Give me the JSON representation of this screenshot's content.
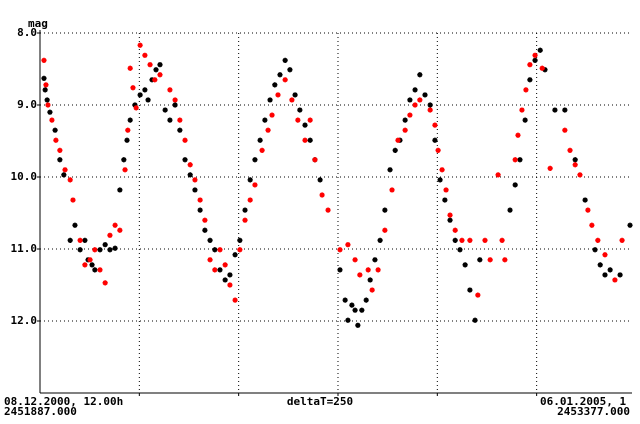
{
  "chart_data": {
    "type": "scatter",
    "y_label": "mag",
    "x_start_label": "08.12.2000, 12.00h",
    "x_start_jd": "2451887.000",
    "x_step_label": "deltaT=250",
    "x_end_label": "06.01.2005, 1",
    "x_end_jd": "2453377.000",
    "xlim": [
      2451887,
      2453377
    ],
    "xticks": [
      2452137,
      2452387,
      2452637,
      2452887,
      2453137
    ],
    "ylim": [
      13,
      8
    ],
    "yticks": [
      {
        "value": 8,
        "label": "8.0"
      },
      {
        "value": 9,
        "label": "9.0"
      },
      {
        "value": 10,
        "label": "10.0"
      },
      {
        "value": 11,
        "label": "11.0"
      },
      {
        "value": 12,
        "label": "12.0"
      }
    ],
    "grid": true,
    "series": [
      {
        "color": "#000000",
        "x": [
          2451897,
          2451900,
          2451905,
          2451912,
          2451925,
          2451937,
          2451947,
          2451963,
          2451975,
          2451988,
          2452000,
          2452008,
          2452018,
          2452025,
          2452038,
          2452051,
          2452063,
          2452076,
          2452088,
          2452098,
          2452106,
          2452114,
          2452126,
          2452139,
          2452151,
          2452159,
          2452169,
          2452179,
          2452189,
          2452202,
          2452214,
          2452227,
          2452239,
          2452252,
          2452265,
          2452277,
          2452290,
          2452302,
          2452315,
          2452327,
          2452340,
          2452353,
          2452365,
          2452378,
          2452390,
          2452403,
          2452416,
          2452428,
          2452441,
          2452453,
          2452466,
          2452478,
          2452491,
          2452504,
          2452516,
          2452529,
          2452541,
          2452554,
          2452567,
          2452579,
          2452592,
          2452642,
          2452655,
          2452662,
          2452672,
          2452680,
          2452687,
          2452697,
          2452708,
          2452718,
          2452730,
          2452743,
          2452755,
          2452768,
          2452781,
          2452793,
          2452806,
          2452818,
          2452831,
          2452843,
          2452856,
          2452869,
          2452881,
          2452894,
          2452906,
          2452919,
          2452932,
          2452944,
          2452957,
          2452969,
          2452982,
          2452994,
          2453070,
          2453083,
          2453095,
          2453108,
          2453120,
          2453133,
          2453146,
          2453158,
          2453183,
          2453208,
          2453234,
          2453259,
          2453284,
          2453297,
          2453309,
          2453322,
          2453347,
          2453372
        ],
        "values": [
          8.63,
          8.79,
          8.93,
          9.1,
          9.35,
          9.76,
          9.97,
          10.88,
          10.67,
          11.01,
          10.88,
          11.15,
          11.22,
          11.29,
          11.01,
          10.94,
          11.01,
          10.99,
          10.18,
          9.76,
          9.49,
          9.21,
          9.0,
          8.86,
          8.79,
          8.93,
          8.65,
          8.51,
          8.44,
          9.07,
          9.21,
          9.0,
          9.35,
          9.76,
          9.97,
          10.18,
          10.46,
          10.74,
          10.88,
          11.01,
          11.29,
          11.43,
          11.36,
          11.08,
          10.88,
          10.46,
          10.04,
          9.76,
          9.49,
          9.21,
          8.93,
          8.72,
          8.58,
          8.38,
          8.51,
          8.86,
          9.07,
          9.28,
          9.49,
          9.76,
          10.04,
          11.29,
          11.71,
          11.99,
          11.78,
          11.85,
          12.06,
          11.85,
          11.71,
          11.43,
          11.15,
          10.88,
          10.46,
          9.9,
          9.63,
          9.49,
          9.21,
          8.93,
          8.79,
          8.58,
          8.86,
          9.0,
          9.49,
          10.04,
          10.32,
          10.6,
          10.88,
          11.01,
          11.22,
          11.57,
          11.99,
          11.15,
          10.46,
          10.11,
          9.76,
          9.21,
          8.65,
          8.38,
          8.24,
          8.51,
          9.07,
          9.07,
          9.76,
          10.32,
          11.01,
          11.22,
          11.36,
          11.29,
          11.36,
          10.67
        ]
      },
      {
        "color": "#ff0000",
        "x": [
          2451897,
          2451902,
          2451907,
          2451917,
          2451927,
          2451937,
          2451950,
          2451963,
          2451970,
          2451988,
          2452000,
          2452013,
          2452025,
          2452038,
          2452051,
          2452063,
          2452076,
          2452088,
          2452101,
          2452108,
          2452114,
          2452121,
          2452129,
          2452139,
          2452151,
          2452164,
          2452176,
          2452189,
          2452214,
          2452227,
          2452239,
          2452252,
          2452265,
          2452277,
          2452290,
          2452302,
          2452315,
          2452327,
          2452340,
          2452353,
          2452365,
          2452378,
          2452390,
          2452403,
          2452416,
          2452428,
          2452446,
          2452461,
          2452471,
          2452486,
          2452504,
          2452521,
          2452536,
          2452554,
          2452567,
          2452579,
          2452597,
          2452612,
          2452642,
          2452662,
          2452680,
          2452692,
          2452713,
          2452723,
          2452738,
          2452755,
          2452773,
          2452788,
          2452806,
          2452818,
          2452831,
          2452843,
          2452869,
          2452881,
          2452889,
          2452899,
          2452909,
          2452919,
          2452932,
          2452949,
          2452969,
          2452989,
          2453007,
          2453020,
          2453040,
          2453050,
          2453057,
          2453083,
          2453090,
          2453100,
          2453110,
          2453120,
          2453133,
          2453151,
          2453171,
          2453208,
          2453221,
          2453234,
          2453246,
          2453266,
          2453276,
          2453291,
          2453309,
          2453334,
          2453352
        ],
        "values": [
          8.38,
          8.72,
          9.0,
          9.21,
          9.49,
          9.63,
          9.9,
          10.04,
          10.32,
          10.88,
          11.22,
          11.15,
          11.01,
          11.29,
          11.47,
          10.81,
          10.67,
          10.74,
          9.9,
          9.35,
          8.49,
          8.76,
          9.04,
          8.17,
          8.31,
          8.44,
          8.65,
          8.58,
          8.79,
          8.93,
          9.21,
          9.49,
          9.83,
          10.04,
          10.32,
          10.6,
          11.15,
          11.29,
          11.01,
          11.22,
          11.5,
          11.71,
          11.01,
          10.6,
          10.32,
          10.11,
          9.63,
          9.35,
          9.14,
          8.86,
          8.65,
          8.93,
          9.21,
          9.49,
          9.21,
          9.76,
          10.25,
          10.46,
          11.01,
          10.94,
          11.15,
          11.36,
          11.29,
          11.57,
          11.29,
          10.74,
          10.18,
          9.49,
          9.35,
          9.14,
          9.0,
          8.93,
          9.07,
          9.28,
          9.63,
          9.9,
          10.18,
          10.53,
          10.74,
          10.88,
          10.88,
          11.64,
          10.88,
          11.15,
          9.97,
          10.88,
          11.15,
          9.76,
          9.42,
          9.07,
          8.79,
          8.44,
          8.31,
          8.49,
          9.88,
          9.35,
          9.63,
          9.83,
          9.97,
          10.46,
          10.67,
          10.88,
          11.08,
          11.43,
          10.88
        ]
      }
    ]
  }
}
